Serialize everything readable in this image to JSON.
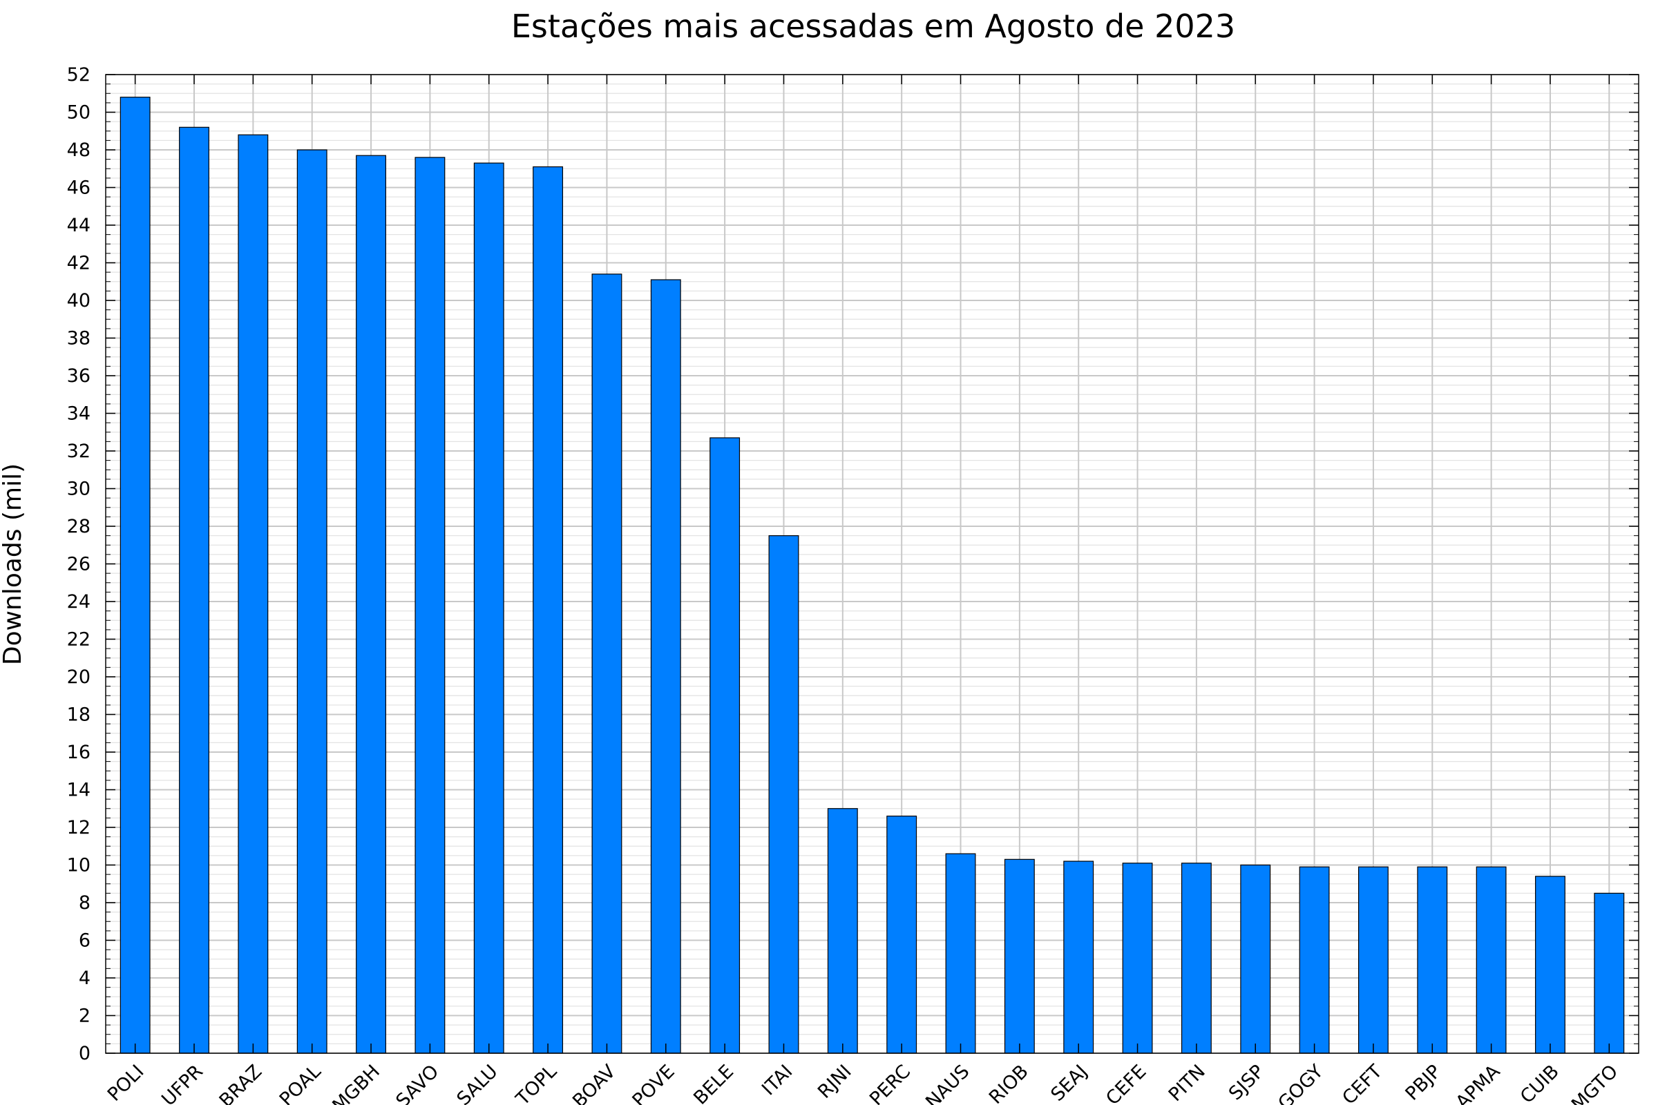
{
  "chart_data": {
    "type": "bar",
    "title": "Estações mais acessadas em Agosto de 2023",
    "xlabel": "",
    "ylabel": "Downloads (mil)",
    "ylim": [
      0,
      52
    ],
    "yticks": [
      0,
      2,
      4,
      6,
      8,
      10,
      12,
      14,
      16,
      18,
      20,
      22,
      24,
      26,
      28,
      30,
      32,
      34,
      36,
      38,
      40,
      42,
      44,
      46,
      48,
      50,
      52
    ],
    "grid": true,
    "bar_color": "#007FFF",
    "categories": [
      "POLI",
      "UFPR",
      "BRAZ",
      "POAL",
      "MGBH",
      "SAVO",
      "SALU",
      "TOPL",
      "BOAV",
      "POVE",
      "BELE",
      "ITAI",
      "RJNI",
      "PERC",
      "NAUS",
      "RIOB",
      "SEAJ",
      "CEFE",
      "PITN",
      "SJSP",
      "GOGY",
      "CEFT",
      "PBJP",
      "APMA",
      "CUIB",
      "MGTO"
    ],
    "values": [
      50.8,
      49.2,
      48.8,
      48.0,
      47.7,
      47.6,
      47.3,
      47.1,
      41.4,
      41.1,
      32.7,
      27.5,
      13.0,
      12.6,
      10.6,
      10.3,
      10.2,
      10.1,
      10.1,
      10.0,
      9.9,
      9.9,
      9.9,
      9.9,
      9.4,
      8.5
    ]
  }
}
